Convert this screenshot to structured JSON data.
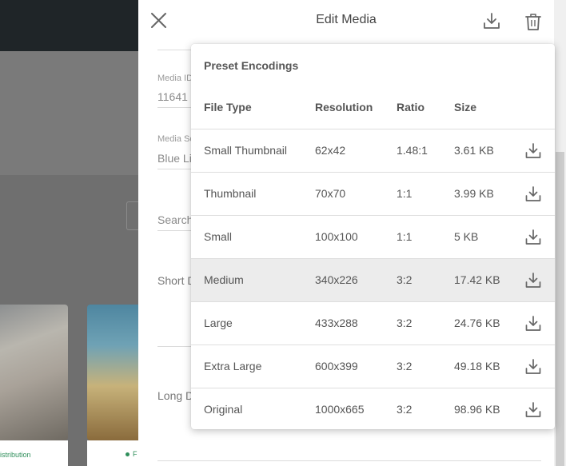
{
  "colors": {
    "topbar": "#1f2528",
    "overlay": "#6f6f6f",
    "status_green": "#2f8f5b",
    "row_highlight": "#ececec"
  },
  "background": {
    "cards": [
      {
        "footer_text": "istribution"
      },
      {
        "footer_text": "F"
      }
    ]
  },
  "drawer": {
    "title": "Edit Media",
    "close_icon": "close-icon",
    "download_icon": "download-icon",
    "delete_icon": "trash-icon",
    "fields": {
      "media_id_label": "Media ID",
      "media_id_value": "11641",
      "media_source_label": "Media Sc",
      "media_source_value": "Blue Li",
      "search_label": "Search",
      "short_desc_label": "Short D",
      "long_desc_label": "Long D"
    }
  },
  "preset": {
    "title": "Preset Encodings",
    "columns": {
      "file_type": "File Type",
      "resolution": "Resolution",
      "ratio": "Ratio",
      "size": "Size"
    },
    "rows": [
      {
        "file_type": "Small Thumbnail",
        "resolution": "62x42",
        "ratio": "1.48:1",
        "size": "3.61 KB",
        "highlighted": false
      },
      {
        "file_type": "Thumbnail",
        "resolution": "70x70",
        "ratio": "1:1",
        "size": "3.99 KB",
        "highlighted": false
      },
      {
        "file_type": "Small",
        "resolution": "100x100",
        "ratio": "1:1",
        "size": "5 KB",
        "highlighted": false
      },
      {
        "file_type": "Medium",
        "resolution": "340x226",
        "ratio": "3:2",
        "size": "17.42 KB",
        "highlighted": true
      },
      {
        "file_type": "Large",
        "resolution": "433x288",
        "ratio": "3:2",
        "size": "24.76 KB",
        "highlighted": false
      },
      {
        "file_type": "Extra Large",
        "resolution": "600x399",
        "ratio": "3:2",
        "size": "49.18 KB",
        "highlighted": false
      },
      {
        "file_type": "Original",
        "resolution": "1000x665",
        "ratio": "3:2",
        "size": "98.96 KB",
        "highlighted": false
      }
    ]
  }
}
